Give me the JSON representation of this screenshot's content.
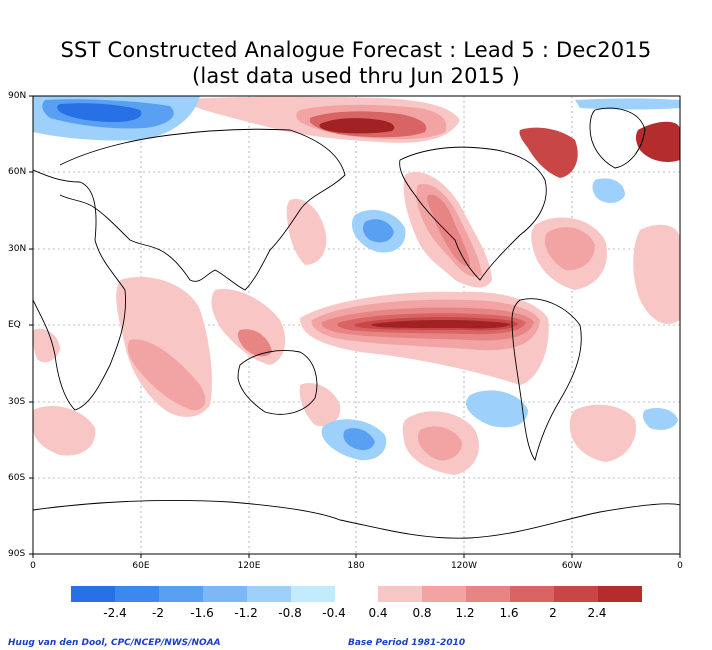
{
  "title": {
    "line1": "SST Constructed Analogue Forecast : Lead 5 : Dec2015",
    "line2": "(last data used thru Jun 2015 )"
  },
  "axes": {
    "lat_labels": [
      "90N",
      "60N",
      "30N",
      "EQ",
      "30S",
      "60S",
      "90S"
    ],
    "lon_labels": [
      "0",
      "60E",
      "120E",
      "180",
      "120W",
      "60W",
      "0"
    ]
  },
  "legend": {
    "negative": [
      {
        "label": "-2.4",
        "color": "#2770e6"
      },
      {
        "label": "-2",
        "color": "#3d88ee"
      },
      {
        "label": "-1.6",
        "color": "#5aa0f2"
      },
      {
        "label": "-1.2",
        "color": "#7cb8f6"
      },
      {
        "label": "-0.8",
        "color": "#9dd0fa"
      },
      {
        "label": "-0.4",
        "color": "#c2ecfc"
      }
    ],
    "positive": [
      {
        "label": "0.4",
        "color": "#f9c6c6"
      },
      {
        "label": "0.8",
        "color": "#f2a3a3"
      },
      {
        "label": "1.2",
        "color": "#e78484"
      },
      {
        "label": "1.6",
        "color": "#d86464"
      },
      {
        "label": "2",
        "color": "#c84646"
      },
      {
        "label": "2.4",
        "color": "#b42c2c"
      }
    ],
    "end_color": "#a12222"
  },
  "footer": {
    "left": "Huug van den Dool, CPC/NCEP/NWS/NOAA",
    "right": "Base Period 1981-2010"
  }
}
